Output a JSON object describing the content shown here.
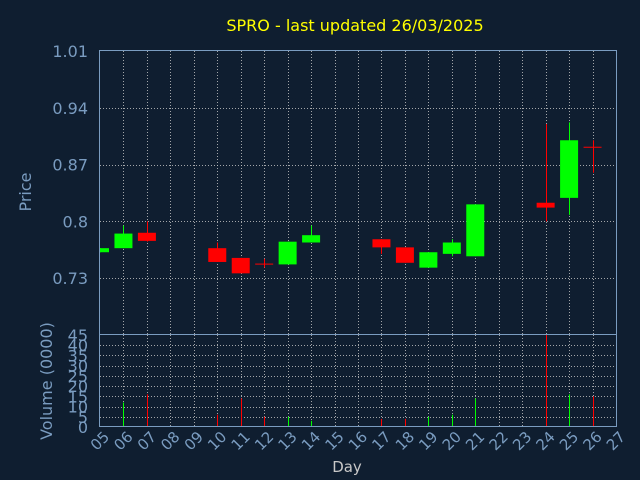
{
  "chart_data": {
    "type": "candlestick",
    "title": "SPRO - last updated 26/03/2025",
    "xlabel": "Day",
    "price_label": "Price",
    "volume_label": "Volume (0000)",
    "x_ticks": [
      "05",
      "06",
      "07",
      "08",
      "09",
      "10",
      "11",
      "12",
      "13",
      "14",
      "15",
      "16",
      "17",
      "18",
      "19",
      "20",
      "21",
      "22",
      "23",
      "24",
      "25",
      "26",
      "27"
    ],
    "price_ticks": [
      "0.73",
      "0.8",
      "0.87",
      "0.94",
      "1.01"
    ],
    "price_tick_values": [
      0.73,
      0.8,
      0.87,
      0.94,
      1.01
    ],
    "price_ylim": [
      0.66,
      1.01
    ],
    "volume_ticks": [
      "0",
      "5",
      "10",
      "15",
      "20",
      "25",
      "30",
      "35",
      "40",
      "45"
    ],
    "volume_tick_values": [
      0,
      5,
      10,
      15,
      20,
      25,
      30,
      35,
      40,
      45
    ],
    "volume_ylim": [
      0,
      45
    ],
    "grid": true,
    "colors": {
      "background": "#0f1e30",
      "title": "#ffff00",
      "axis_text": "#7a9cc0",
      "grid": "#c8c8c8",
      "up": "#00ff00",
      "down": "#ff0000"
    },
    "candles": [
      {
        "day": "05",
        "open": 0.762,
        "close": 0.767,
        "high": 0.767,
        "low": 0.762,
        "volume": 0
      },
      {
        "day": "06",
        "open": 0.767,
        "close": 0.785,
        "high": 0.795,
        "low": 0.767,
        "volume": 12
      },
      {
        "day": "07",
        "open": 0.786,
        "close": 0.776,
        "high": 0.8,
        "low": 0.775,
        "volume": 16
      },
      {
        "day": "10",
        "open": 0.767,
        "close": 0.75,
        "high": 0.774,
        "low": 0.75,
        "volume": 6
      },
      {
        "day": "11",
        "open": 0.755,
        "close": 0.736,
        "high": 0.755,
        "low": 0.736,
        "volume": 14
      },
      {
        "day": "12",
        "open": 0.748,
        "close": 0.747,
        "high": 0.754,
        "low": 0.743,
        "volume": 5
      },
      {
        "day": "13",
        "open": 0.747,
        "close": 0.775,
        "high": 0.775,
        "low": 0.747,
        "volume": 5
      },
      {
        "day": "14",
        "open": 0.774,
        "close": 0.783,
        "high": 0.795,
        "low": 0.774,
        "volume": 3
      },
      {
        "day": "17",
        "open": 0.778,
        "close": 0.768,
        "high": 0.778,
        "low": 0.76,
        "volume": 4
      },
      {
        "day": "18",
        "open": 0.768,
        "close": 0.749,
        "high": 0.768,
        "low": 0.749,
        "volume": 4
      },
      {
        "day": "19",
        "open": 0.743,
        "close": 0.762,
        "high": 0.762,
        "low": 0.743,
        "volume": 5
      },
      {
        "day": "20",
        "open": 0.76,
        "close": 0.774,
        "high": 0.778,
        "low": 0.757,
        "volume": 6
      },
      {
        "day": "21",
        "open": 0.757,
        "close": 0.821,
        "high": 0.821,
        "low": 0.757,
        "volume": 14
      },
      {
        "day": "24",
        "open": 0.823,
        "close": 0.817,
        "high": 0.92,
        "low": 0.8,
        "volume": 45
      },
      {
        "day": "25",
        "open": 0.829,
        "close": 0.9,
        "high": 0.922,
        "low": 0.808,
        "volume": 16
      },
      {
        "day": "26",
        "open": 0.892,
        "close": 0.891,
        "high": 0.9,
        "low": 0.86,
        "volume": 15
      }
    ]
  }
}
